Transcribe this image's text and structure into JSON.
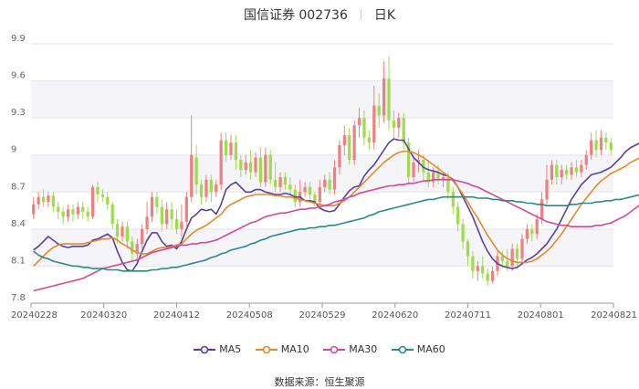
{
  "header": {
    "title": "国信证券 002736",
    "period": "日K"
  },
  "legend": [
    {
      "label": "MA5",
      "color": "#5b3f9e"
    },
    {
      "label": "MA10",
      "color": "#e38a2a"
    },
    {
      "label": "MA30",
      "color": "#d04a9c"
    },
    {
      "label": "MA60",
      "color": "#2a8a8a"
    }
  ],
  "source": {
    "label": "数据来源：",
    "value": "恒生聚源"
  },
  "colors": {
    "up": "#f08080",
    "down": "#9edc4a",
    "band": "#f4f4f9",
    "grid": "#e6e6e6"
  },
  "chart_data": {
    "type": "candlestick",
    "title": "国信证券 002736 日K",
    "ylim": [
      7.8,
      9.9
    ],
    "y_ticks": [
      "7.8",
      "8.1",
      "8.4",
      "8.7",
      "9",
      "9.3",
      "9.6",
      "9.9"
    ],
    "x_ticks": [
      "20240228",
      "20240320",
      "20240412",
      "20240508",
      "20240529",
      "20240620",
      "20240711",
      "20240801",
      "20240821"
    ],
    "grid": "horizontal",
    "legend_position": "bottom",
    "candles": [
      [
        8.52,
        8.6,
        8.48,
        8.66
      ],
      [
        8.6,
        8.66,
        8.56,
        8.7
      ],
      [
        8.66,
        8.62,
        8.58,
        8.72
      ],
      [
        8.62,
        8.67,
        8.58,
        8.7
      ],
      [
        8.67,
        8.58,
        8.54,
        8.7
      ],
      [
        8.58,
        8.54,
        8.48,
        8.62
      ],
      [
        8.54,
        8.5,
        8.44,
        8.58
      ],
      [
        8.5,
        8.56,
        8.46,
        8.6
      ],
      [
        8.56,
        8.52,
        8.46,
        8.6
      ],
      [
        8.52,
        8.58,
        8.48,
        8.62
      ],
      [
        8.58,
        8.54,
        8.48,
        8.62
      ],
      [
        8.54,
        8.5,
        8.46,
        8.58
      ],
      [
        8.5,
        8.74,
        8.48,
        8.76
      ],
      [
        8.74,
        8.68,
        8.62,
        8.78
      ],
      [
        8.68,
        8.66,
        8.62,
        8.72
      ],
      [
        8.66,
        8.6,
        8.56,
        8.7
      ],
      [
        8.6,
        8.44,
        8.4,
        8.62
      ],
      [
        8.44,
        8.34,
        8.28,
        8.48
      ],
      [
        8.34,
        8.42,
        8.3,
        8.46
      ],
      [
        8.42,
        8.3,
        8.24,
        8.46
      ],
      [
        8.3,
        8.2,
        8.14,
        8.34
      ],
      [
        8.2,
        8.28,
        8.14,
        8.32
      ],
      [
        8.28,
        8.4,
        8.24,
        8.44
      ],
      [
        8.4,
        8.5,
        8.36,
        8.62
      ],
      [
        8.5,
        8.66,
        8.46,
        8.7
      ],
      [
        8.66,
        8.58,
        8.52,
        8.7
      ],
      [
        8.58,
        8.44,
        8.38,
        8.64
      ],
      [
        8.44,
        8.56,
        8.4,
        8.62
      ],
      [
        8.56,
        8.48,
        8.4,
        8.62
      ],
      [
        8.48,
        8.4,
        8.36,
        8.56
      ],
      [
        8.4,
        8.46,
        8.34,
        8.6
      ],
      [
        8.46,
        8.66,
        8.42,
        8.7
      ],
      [
        8.66,
        9.0,
        8.62,
        9.32
      ],
      [
        8.98,
        8.76,
        8.68,
        9.08
      ],
      [
        8.76,
        8.66,
        8.6,
        8.8
      ],
      [
        8.66,
        8.8,
        8.62,
        8.84
      ],
      [
        8.8,
        8.7,
        8.62,
        8.84
      ],
      [
        8.7,
        8.76,
        8.66,
        8.8
      ],
      [
        8.76,
        9.12,
        8.72,
        9.18
      ],
      [
        9.12,
        9.0,
        8.94,
        9.18
      ],
      [
        9.0,
        9.1,
        8.96,
        9.16
      ],
      [
        9.1,
        8.96,
        8.88,
        9.16
      ],
      [
        8.96,
        8.88,
        8.82,
        9.0
      ],
      [
        8.88,
        8.94,
        8.84,
        9.0
      ],
      [
        8.94,
        8.86,
        8.8,
        9.04
      ],
      [
        8.86,
        8.98,
        8.82,
        9.02
      ],
      [
        8.98,
        8.78,
        8.74,
        9.06
      ],
      [
        8.78,
        9.0,
        8.74,
        9.06
      ],
      [
        9.0,
        8.8,
        8.76,
        9.04
      ],
      [
        8.8,
        8.74,
        8.7,
        8.94
      ],
      [
        8.74,
        8.82,
        8.7,
        8.86
      ],
      [
        8.82,
        8.76,
        8.72,
        8.86
      ],
      [
        8.76,
        8.72,
        8.68,
        8.82
      ],
      [
        8.72,
        8.62,
        8.58,
        8.76
      ],
      [
        8.62,
        8.7,
        8.58,
        8.8
      ],
      [
        8.7,
        8.74,
        8.66,
        8.78
      ],
      [
        8.74,
        8.68,
        8.64,
        8.78
      ],
      [
        8.68,
        8.62,
        8.58,
        8.7
      ],
      [
        8.62,
        8.74,
        8.58,
        8.8
      ],
      [
        8.74,
        8.8,
        8.7,
        8.84
      ],
      [
        8.8,
        8.72,
        8.68,
        8.86
      ],
      [
        8.72,
        8.9,
        8.68,
        8.96
      ],
      [
        8.9,
        9.08,
        8.84,
        9.12
      ],
      [
        9.08,
        9.16,
        9.0,
        9.24
      ],
      [
        9.16,
        8.96,
        8.92,
        9.22
      ],
      [
        8.96,
        9.24,
        8.92,
        9.28
      ],
      [
        9.24,
        9.3,
        9.14,
        9.38
      ],
      [
        9.3,
        9.14,
        9.08,
        9.36
      ],
      [
        9.14,
        9.1,
        9.04,
        9.2
      ],
      [
        9.1,
        9.4,
        9.04,
        9.56
      ],
      [
        9.4,
        9.32,
        9.22,
        9.5
      ],
      [
        9.32,
        9.62,
        9.26,
        9.76
      ],
      [
        9.62,
        9.28,
        9.2,
        9.8
      ],
      [
        9.28,
        9.22,
        9.12,
        9.36
      ],
      [
        9.22,
        9.3,
        9.14,
        9.34
      ],
      [
        9.3,
        9.1,
        9.04,
        9.34
      ],
      [
        9.1,
        8.82,
        8.76,
        9.14
      ],
      [
        8.82,
        8.94,
        8.78,
        9.0
      ],
      [
        8.94,
        8.96,
        8.86,
        9.04
      ],
      [
        8.96,
        8.86,
        8.8,
        9.0
      ],
      [
        8.86,
        8.78,
        8.74,
        8.96
      ],
      [
        8.78,
        8.86,
        8.74,
        8.9
      ],
      [
        8.86,
        8.8,
        8.76,
        8.92
      ],
      [
        8.8,
        8.82,
        8.74,
        8.86
      ],
      [
        8.82,
        8.7,
        8.64,
        8.86
      ],
      [
        8.7,
        8.58,
        8.52,
        8.74
      ],
      [
        8.58,
        8.44,
        8.38,
        8.62
      ],
      [
        8.44,
        8.3,
        8.24,
        8.48
      ],
      [
        8.3,
        8.18,
        8.1,
        8.32
      ],
      [
        8.18,
        8.06,
        8.0,
        8.22
      ],
      [
        8.06,
        8.1,
        7.98,
        8.14
      ],
      [
        8.1,
        8.04,
        8.0,
        8.18
      ],
      [
        8.04,
        7.98,
        7.94,
        8.08
      ],
      [
        7.98,
        8.06,
        7.96,
        8.1
      ],
      [
        8.06,
        8.18,
        8.02,
        8.22
      ],
      [
        8.18,
        8.14,
        8.08,
        8.22
      ],
      [
        8.14,
        8.1,
        8.06,
        8.24
      ],
      [
        8.1,
        8.24,
        8.06,
        8.28
      ],
      [
        8.24,
        8.16,
        8.1,
        8.28
      ],
      [
        8.16,
        8.32,
        8.12,
        8.36
      ],
      [
        8.32,
        8.4,
        8.28,
        8.44
      ],
      [
        8.4,
        8.36,
        8.3,
        8.44
      ],
      [
        8.36,
        8.48,
        8.32,
        8.52
      ],
      [
        8.48,
        8.64,
        8.44,
        8.7
      ],
      [
        8.64,
        8.8,
        8.6,
        8.92
      ],
      [
        8.8,
        8.92,
        8.76,
        8.96
      ],
      [
        8.92,
        8.82,
        8.76,
        8.96
      ],
      [
        8.82,
        8.88,
        8.76,
        8.92
      ],
      [
        8.88,
        8.84,
        8.8,
        8.92
      ],
      [
        8.84,
        8.9,
        8.8,
        8.94
      ],
      [
        8.9,
        8.86,
        8.82,
        8.96
      ],
      [
        8.86,
        8.92,
        8.82,
        8.96
      ],
      [
        8.92,
        9.0,
        8.88,
        9.04
      ],
      [
        9.0,
        9.12,
        8.96,
        9.18
      ],
      [
        9.12,
        9.04,
        8.98,
        9.2
      ],
      [
        9.04,
        9.14,
        9.0,
        9.2
      ],
      [
        9.14,
        9.1,
        9.04,
        9.18
      ],
      [
        9.1,
        9.04,
        9.0,
        9.14
      ]
    ],
    "series": [
      {
        "name": "MA5",
        "color": "#5b3f9e",
        "values": [
          8.23,
          8.26,
          8.3,
          8.34,
          8.31,
          8.28,
          8.26,
          8.25,
          8.26,
          8.26,
          8.26,
          8.27,
          8.31,
          8.32,
          8.34,
          8.36,
          8.33,
          8.22,
          8.13,
          8.07,
          8.06,
          8.12,
          8.22,
          8.31,
          8.37,
          8.37,
          8.3,
          8.26,
          8.27,
          8.24,
          8.3,
          8.4,
          8.49,
          8.52,
          8.56,
          8.55,
          8.56,
          8.52,
          8.6,
          8.72,
          8.76,
          8.78,
          8.74,
          8.7,
          8.7,
          8.72,
          8.72,
          8.7,
          8.69,
          8.68,
          8.68,
          8.69,
          8.68,
          8.66,
          8.66,
          8.63,
          8.63,
          8.62,
          8.57,
          8.55,
          8.54,
          8.55,
          8.6,
          8.66,
          8.71,
          8.74,
          8.75,
          8.83,
          8.88,
          8.92,
          8.98,
          9.04,
          9.1,
          9.13,
          9.12,
          9.12,
          9.05,
          8.98,
          8.94,
          8.9,
          8.88,
          8.87,
          8.86,
          8.84,
          8.83,
          8.8,
          8.74,
          8.66,
          8.58,
          8.5,
          8.4,
          8.3,
          8.22,
          8.16,
          8.12,
          8.1,
          8.09,
          8.08,
          8.09,
          8.12,
          8.15,
          8.17,
          8.2,
          8.24,
          8.28,
          8.34,
          8.4,
          8.48,
          8.56,
          8.64,
          8.7,
          8.76,
          8.8,
          8.84,
          8.85,
          8.86,
          8.88,
          8.9,
          8.94,
          8.98,
          9.03,
          9.06,
          9.08,
          9.1
        ]
      },
      {
        "name": "MA10",
        "color": "#e38a2a",
        "values": [
          8.1,
          8.14,
          8.18,
          8.22,
          8.25,
          8.27,
          8.28,
          8.28,
          8.28,
          8.28,
          8.28,
          8.29,
          8.3,
          8.31,
          8.32,
          8.32,
          8.33,
          8.31,
          8.28,
          8.26,
          8.23,
          8.21,
          8.2,
          8.2,
          8.22,
          8.24,
          8.25,
          8.25,
          8.26,
          8.27,
          8.28,
          8.32,
          8.36,
          8.39,
          8.41,
          8.43,
          8.46,
          8.49,
          8.52,
          8.57,
          8.6,
          8.62,
          8.64,
          8.66,
          8.67,
          8.68,
          8.68,
          8.68,
          8.68,
          8.67,
          8.67,
          8.66,
          8.66,
          8.65,
          8.64,
          8.63,
          8.62,
          8.61,
          8.6,
          8.59,
          8.59,
          8.59,
          8.61,
          8.63,
          8.66,
          8.7,
          8.74,
          8.78,
          8.82,
          8.86,
          8.9,
          8.94,
          8.97,
          9.0,
          9.02,
          9.03,
          9.03,
          9.02,
          9.0,
          8.98,
          8.95,
          8.92,
          8.89,
          8.86,
          8.83,
          8.79,
          8.74,
          8.68,
          8.62,
          8.55,
          8.49,
          8.42,
          8.35,
          8.29,
          8.23,
          8.19,
          8.16,
          8.14,
          8.13,
          8.13,
          8.13,
          8.14,
          8.16,
          8.19,
          8.22,
          8.26,
          8.31,
          8.36,
          8.42,
          8.48,
          8.54,
          8.6,
          8.65,
          8.7,
          8.75,
          8.79,
          8.82,
          8.85,
          8.87,
          8.89,
          8.91,
          8.94,
          8.96,
          8.98
        ]
      },
      {
        "name": "MA30",
        "color": "#d04a9c",
        "values": [
          7.9,
          7.91,
          7.92,
          7.93,
          7.94,
          7.95,
          7.96,
          7.97,
          7.98,
          7.99,
          8.0,
          8.02,
          8.04,
          8.06,
          8.08,
          8.09,
          8.1,
          8.11,
          8.12,
          8.13,
          8.14,
          8.15,
          8.17,
          8.19,
          8.21,
          8.22,
          8.23,
          8.24,
          8.25,
          8.26,
          8.27,
          8.27,
          8.28,
          8.28,
          8.29,
          8.29,
          8.3,
          8.31,
          8.33,
          8.35,
          8.37,
          8.39,
          8.41,
          8.43,
          8.45,
          8.46,
          8.48,
          8.5,
          8.51,
          8.52,
          8.53,
          8.53,
          8.54,
          8.55,
          8.56,
          8.56,
          8.57,
          8.57,
          8.58,
          8.59,
          8.6,
          8.62,
          8.63,
          8.64,
          8.66,
          8.67,
          8.69,
          8.7,
          8.71,
          8.72,
          8.73,
          8.74,
          8.75,
          8.75,
          8.76,
          8.76,
          8.77,
          8.77,
          8.78,
          8.79,
          8.79,
          8.8,
          8.8,
          8.8,
          8.8,
          8.8,
          8.79,
          8.78,
          8.77,
          8.75,
          8.74,
          8.72,
          8.7,
          8.68,
          8.66,
          8.64,
          8.62,
          8.6,
          8.58,
          8.56,
          8.54,
          8.52,
          8.5,
          8.48,
          8.46,
          8.45,
          8.44,
          8.43,
          8.43,
          8.42,
          8.42,
          8.42,
          8.42,
          8.42,
          8.43,
          8.43,
          8.44,
          8.45,
          8.47,
          8.49,
          8.51,
          8.54,
          8.57,
          8.6
        ]
      },
      {
        "name": "MA60",
        "color": "#2a8a8a",
        "values": [
          8.22,
          8.19,
          8.17,
          8.16,
          8.14,
          8.13,
          8.12,
          8.11,
          8.1,
          8.1,
          8.09,
          8.09,
          8.08,
          8.08,
          8.08,
          8.07,
          8.07,
          8.07,
          8.06,
          8.06,
          8.06,
          8.06,
          8.06,
          8.06,
          8.07,
          8.07,
          8.08,
          8.08,
          8.09,
          8.09,
          8.1,
          8.11,
          8.12,
          8.13,
          8.14,
          8.15,
          8.17,
          8.18,
          8.2,
          8.21,
          8.23,
          8.24,
          8.25,
          8.26,
          8.28,
          8.29,
          8.31,
          8.32,
          8.34,
          8.35,
          8.36,
          8.37,
          8.38,
          8.39,
          8.4,
          8.4,
          8.41,
          8.41,
          8.42,
          8.42,
          8.43,
          8.43,
          8.44,
          8.45,
          8.46,
          8.47,
          8.48,
          8.49,
          8.51,
          8.52,
          8.54,
          8.55,
          8.56,
          8.57,
          8.58,
          8.59,
          8.6,
          8.61,
          8.62,
          8.63,
          8.64,
          8.64,
          8.65,
          8.66,
          8.66,
          8.66,
          8.66,
          8.66,
          8.66,
          8.66,
          8.65,
          8.65,
          8.65,
          8.64,
          8.64,
          8.63,
          8.63,
          8.63,
          8.62,
          8.62,
          8.61,
          8.61,
          8.6,
          8.6,
          8.59,
          8.59,
          8.59,
          8.59,
          8.59,
          8.6,
          8.6,
          8.61,
          8.61,
          8.61,
          8.62,
          8.62,
          8.63,
          8.63,
          8.64,
          8.64,
          8.65,
          8.66,
          8.67,
          8.68
        ]
      }
    ]
  }
}
